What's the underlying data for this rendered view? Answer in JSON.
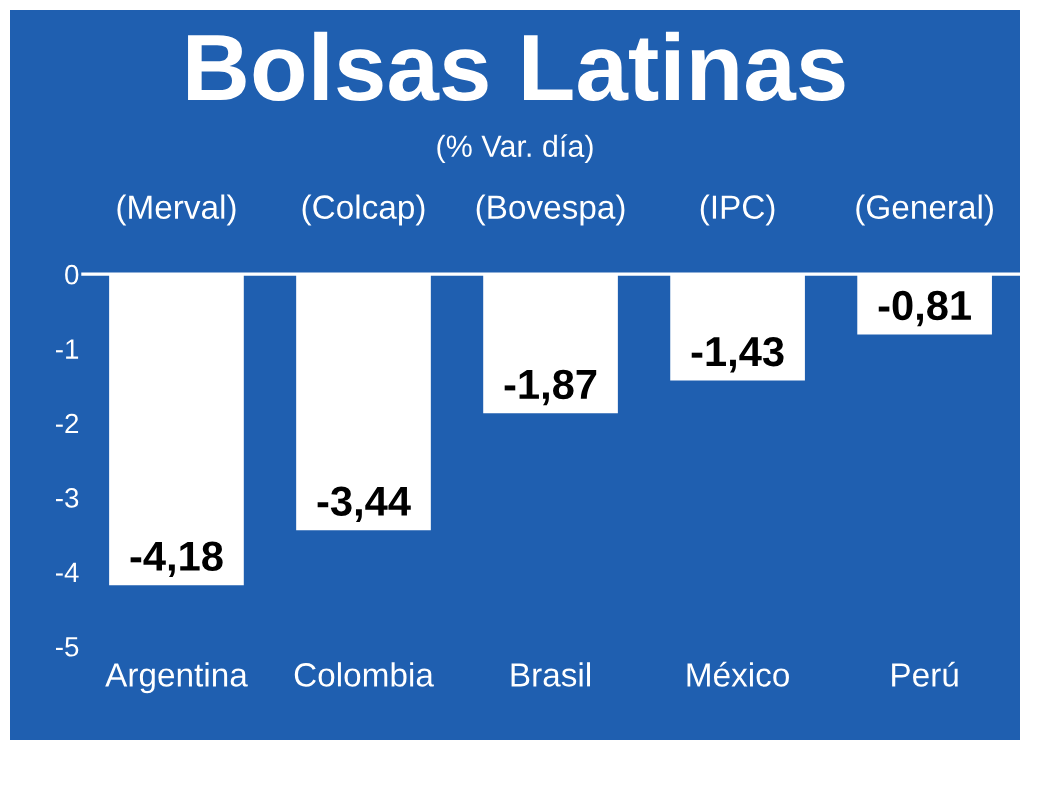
{
  "chart_data": {
    "type": "bar",
    "title": "Bolsas Latinas",
    "subtitle": "(% Var. día)",
    "categories": [
      "Argentina",
      "Colombia",
      "Brasil",
      "México",
      "Perú"
    ],
    "values": [
      -4.18,
      -3.44,
      -1.87,
      -1.43,
      -0.81
    ],
    "value_labels": [
      "-4,18",
      "-3,44",
      "-1,87",
      "-1,43",
      "-0,81"
    ],
    "color": "#ffffff",
    "ylim": [
      -6.26,
      3.55
    ],
    "yticks": [
      0,
      -1,
      -2,
      -3,
      -4,
      -5
    ],
    "annotations": [
      "(Merval)",
      "(Colcap)",
      "(Bovespa)",
      "(IPC)",
      "(General)"
    ],
    "ref_lines": [
      {
        "axis": "y",
        "value": 0,
        "color": "#ffffff"
      }
    ],
    "legend": false
  }
}
